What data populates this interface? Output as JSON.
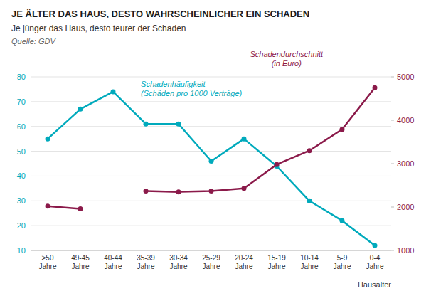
{
  "chart_data": {
    "type": "line",
    "title": "JE ÄLTER DAS HAUS, DESTO WAHRSCHEINLICHER EIN SCHADEN",
    "subtitle": "Je jünger das Haus, desto teurer der Schaden",
    "source": "Quelle: GDV",
    "x_label": "Hausalter",
    "categories": [
      ">50\nJahre",
      "49-45\nJahre",
      "40-44\nJahre",
      "35-39\nJahre",
      "30-34\nJahre",
      "25-29\nJahre",
      "20-24\nJahre",
      "15-19\nJahre",
      "10-14\nJahre",
      "5-9\nJahre",
      "0-4\nJahre"
    ],
    "series": [
      {
        "name": "Schadenhäufigkeit\n(Schäden pro 1000 Verträge)",
        "color": "#00AABC",
        "marker": "circle",
        "values": [
          55,
          67,
          74,
          61,
          61,
          46,
          55,
          44,
          30,
          22,
          12
        ]
      },
      {
        "name": "Schadendurchschnitt\n(in Euro)",
        "color": "#8B1A4A",
        "marker": "circle",
        "axis": "y2",
        "values": [
          2020,
          1960,
          null,
          2370,
          2350,
          2370,
          2430,
          2980,
          3300,
          3790,
          4750
        ]
      }
    ],
    "ylim": [
      10,
      80
    ],
    "yticks": [
      10,
      20,
      30,
      40,
      50,
      60,
      70,
      80
    ],
    "y2lim": [
      1000,
      5000
    ],
    "y2ticks": [
      1000,
      2000,
      3000,
      4000,
      5000
    ],
    "grid": true
  }
}
